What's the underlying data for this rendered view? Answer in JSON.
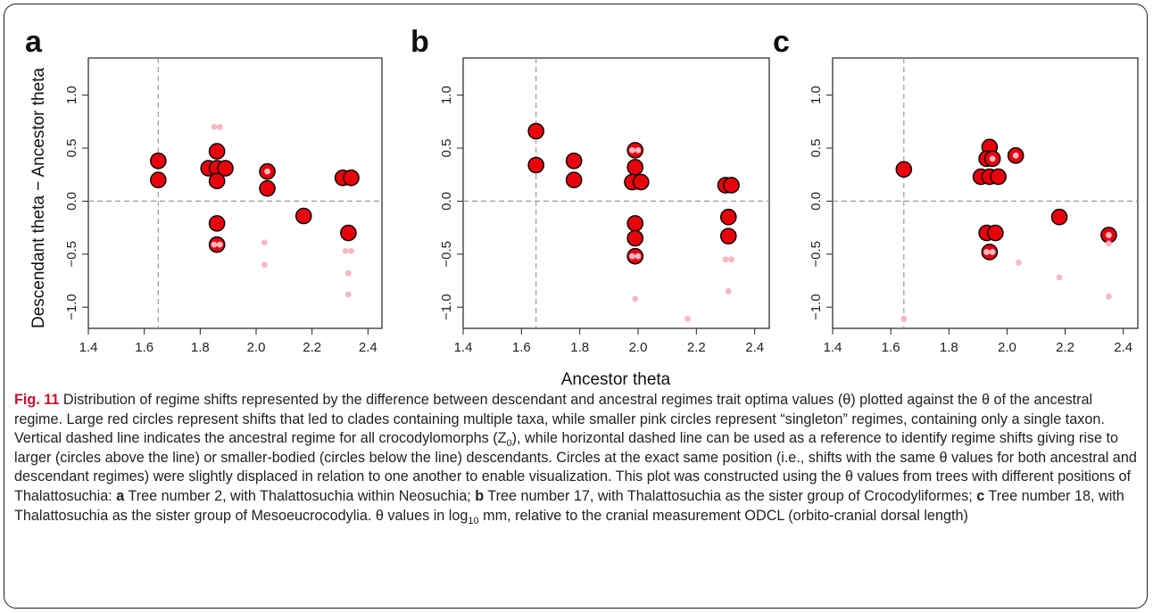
{
  "figure": {
    "ylabel": "Descendant theta − Ancestor theta",
    "xlabel": "Ancestor theta"
  },
  "chart_data": [
    {
      "type": "scatter",
      "panel": "a",
      "xlim": [
        1.4,
        2.45
      ],
      "ylim": [
        -1.2,
        1.35
      ],
      "xticks": [
        "1.4",
        "1.6",
        "1.8",
        "2.0",
        "2.2",
        "2.4"
      ],
      "yticks": [
        "−1.0",
        "−0.5",
        "0.0",
        "0.5",
        "1.0"
      ],
      "grid": false,
      "vline_x": 1.65,
      "hline_y": 0.0,
      "large": [
        [
          1.65,
          0.38
        ],
        [
          1.65,
          0.2
        ],
        [
          1.83,
          0.31
        ],
        [
          1.86,
          0.47
        ],
        [
          1.86,
          0.31
        ],
        [
          1.89,
          0.31
        ],
        [
          1.86,
          0.19
        ],
        [
          1.86,
          -0.21
        ],
        [
          1.86,
          -0.41
        ],
        [
          2.04,
          0.28
        ],
        [
          2.04,
          0.12
        ],
        [
          2.17,
          -0.14
        ],
        [
          2.31,
          0.22
        ],
        [
          2.34,
          0.22
        ],
        [
          2.33,
          -0.3
        ]
      ],
      "small": [
        [
          1.85,
          0.7
        ],
        [
          1.87,
          0.7
        ],
        [
          1.85,
          -0.41
        ],
        [
          1.87,
          -0.41
        ],
        [
          2.04,
          0.28
        ],
        [
          2.03,
          -0.39
        ],
        [
          2.03,
          -0.6
        ],
        [
          2.32,
          -0.47
        ],
        [
          2.34,
          -0.47
        ],
        [
          2.33,
          -0.68
        ],
        [
          2.33,
          -0.88
        ]
      ]
    },
    {
      "type": "scatter",
      "panel": "b",
      "xlim": [
        1.4,
        2.45
      ],
      "ylim": [
        -1.2,
        1.35
      ],
      "xticks": [
        "1.4",
        "1.6",
        "1.8",
        "2.0",
        "2.2",
        "2.4"
      ],
      "yticks": [
        "−1.0",
        "−0.5",
        "0.0",
        "0.5",
        "1.0"
      ],
      "grid": false,
      "vline_x": 1.65,
      "hline_y": 0.0,
      "large": [
        [
          1.65,
          0.66
        ],
        [
          1.65,
          0.34
        ],
        [
          1.78,
          0.38
        ],
        [
          1.78,
          0.2
        ],
        [
          1.99,
          0.48
        ],
        [
          1.99,
          0.32
        ],
        [
          1.98,
          0.18
        ],
        [
          2.01,
          0.18
        ],
        [
          1.99,
          -0.21
        ],
        [
          1.99,
          -0.35
        ],
        [
          1.99,
          -0.52
        ],
        [
          2.3,
          0.15
        ],
        [
          2.32,
          0.15
        ],
        [
          2.31,
          -0.15
        ],
        [
          2.31,
          -0.33
        ]
      ],
      "small": [
        [
          1.98,
          0.48
        ],
        [
          2.0,
          0.48
        ],
        [
          1.98,
          -0.52
        ],
        [
          2.0,
          -0.52
        ],
        [
          1.99,
          -0.92
        ],
        [
          2.17,
          -1.11
        ],
        [
          2.3,
          -0.55
        ],
        [
          2.32,
          -0.55
        ],
        [
          2.31,
          -0.85
        ]
      ]
    },
    {
      "type": "scatter",
      "panel": "c",
      "xlim": [
        1.4,
        2.45
      ],
      "ylim": [
        -1.2,
        1.35
      ],
      "xticks": [
        "1.4",
        "1.6",
        "1.8",
        "2.0",
        "2.2",
        "2.4"
      ],
      "yticks": [
        "−1.0",
        "−0.5",
        "0.0",
        "0.5",
        "1.0"
      ],
      "grid": false,
      "vline_x": 1.645,
      "hline_y": 0.0,
      "large": [
        [
          1.645,
          0.3
        ],
        [
          1.94,
          0.51
        ],
        [
          1.93,
          0.4
        ],
        [
          1.95,
          0.4
        ],
        [
          1.91,
          0.23
        ],
        [
          1.94,
          0.23
        ],
        [
          1.97,
          0.23
        ],
        [
          1.93,
          -0.3
        ],
        [
          1.96,
          -0.3
        ],
        [
          1.94,
          -0.48
        ],
        [
          2.03,
          0.43
        ],
        [
          2.18,
          -0.15
        ],
        [
          2.35,
          -0.32
        ]
      ],
      "small": [
        [
          1.95,
          0.4
        ],
        [
          2.03,
          0.43
        ],
        [
          1.93,
          -0.48
        ],
        [
          1.95,
          -0.48
        ],
        [
          2.04,
          -0.58
        ],
        [
          2.18,
          -0.72
        ],
        [
          2.35,
          -0.32
        ],
        [
          2.35,
          -0.4
        ],
        [
          2.35,
          -0.9
        ],
        [
          1.645,
          -1.11
        ]
      ]
    }
  ],
  "caption": {
    "fig_label": "Fig. 11",
    "text1": " Distribution of regime shifts represented by the difference between descendant and ancestral regimes trait optima values (θ) plotted against the θ of the ancestral regime. Large red circles represent shifts that led to clades containing multiple taxa, while smaller pink circles represent “singleton” regimes, containing only a single taxon. Vertical dashed line indicates the ancestral regime for all crocodylomorphs (Z",
    "z_sub": "0",
    "text2": "), while horizontal dashed line can be used as a reference to identify regime shifts giving rise to larger (circles above the line) or smaller-bodied (circles below the line) descendants. Circles at the exact same position (i.e., shifts with the same θ values for both ancestral and descendant regimes) were slightly displaced in relation to one another to enable visualization. This plot was constructed using the θ values from trees with different positions of Thalattosuchia: ",
    "a": "a",
    "text_a": " Tree number 2, with Thalattosuchia within Neosuchia; ",
    "b": "b",
    "text_b": " Tree number 17, with Thalattosuchia as the sister group of Crocodyliformes; ",
    "c": "c",
    "text_c": " Tree number 18, with Thalattosuchia as the sister group of Mesoeucrocodylia. θ values in log",
    "log_sub": "10",
    "text_end": " mm, relative to the cranial measurement ODCL (orbito-cranial dorsal length)"
  },
  "colors": {
    "large_fill": "#e8000b",
    "large_stroke": "#000000",
    "small_fill": "#f5b9c4",
    "dashed": "#9a9a9a"
  }
}
